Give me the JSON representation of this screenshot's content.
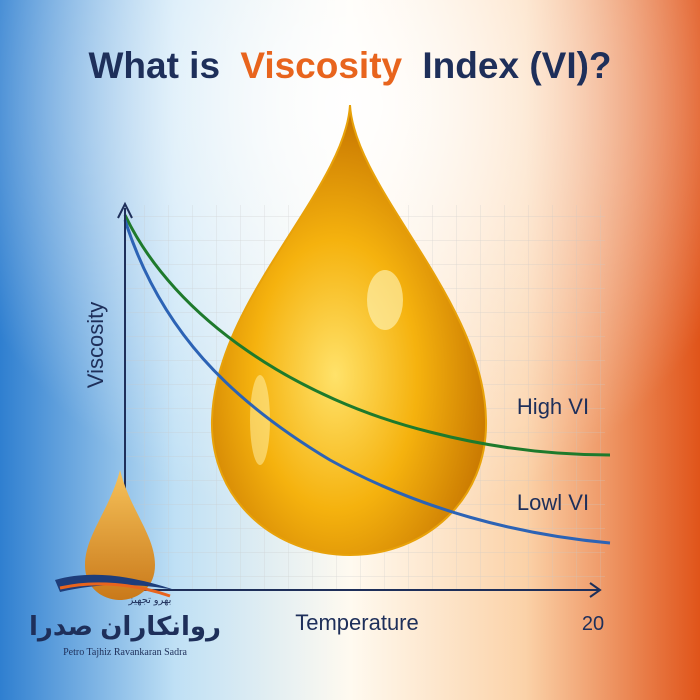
{
  "title": {
    "before": "What is",
    "highlight": "Viscosity",
    "after": "Index (VI)?"
  },
  "axes": {
    "y_label": "Viscosity",
    "x_label": "Temperature",
    "x_end_label": "20"
  },
  "curves": {
    "high": "High VI",
    "low": "Lowl VI"
  },
  "logo": {
    "tagline": "بهرو تجهیز",
    "name": "روانکاران صدرا",
    "latin": "Petro Tajhiz Ravankaran Sadra"
  }
}
